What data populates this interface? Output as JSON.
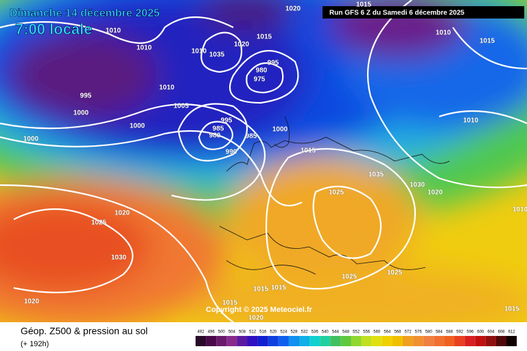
{
  "header": {
    "title": "Dimanche 14 décembre 2025",
    "time": "7:00 locale",
    "run": "Run GFS 6 Z du Samedi 6 décembre 2025"
  },
  "copyright": "Copyright © 2025 Meteociel.fr",
  "isobar_labels": [
    1020,
    1010,
    1010,
    1015,
    1020,
    1010,
    1035,
    995,
    980,
    975,
    1010,
    995,
    1000,
    1005,
    995,
    985,
    980,
    1000,
    1000,
    985,
    1000,
    990,
    1015,
    1035,
    1025,
    1030,
    1020,
    1010,
    1015,
    1010,
    1015,
    1020,
    1025,
    1030,
    1025,
    1025,
    1015,
    1015,
    1015,
    1020,
    1020,
    1015,
    1010
  ],
  "legend": {
    "title": "Géop. Z500 & pression au sol",
    "subtitle": "(+ 192h)",
    "levels": [
      492,
      496,
      500,
      504,
      508,
      512,
      516,
      520,
      524,
      528,
      532,
      536,
      540,
      544,
      548,
      552,
      556,
      560,
      564,
      568,
      572,
      576,
      580,
      584,
      588,
      592,
      596,
      600,
      604,
      608,
      612
    ],
    "colors": [
      "#2a0a2a",
      "#4a0a4a",
      "#6a1a6a",
      "#8a2a8a",
      "#5a1aa0",
      "#3010c0",
      "#1020d0",
      "#1040e0",
      "#1060f0",
      "#1090f0",
      "#10b0e8",
      "#10d0d0",
      "#20d0a0",
      "#40c060",
      "#60c840",
      "#90d830",
      "#c0e020",
      "#e0e010",
      "#f0d000",
      "#f0c000",
      "#f0a020",
      "#f09030",
      "#f08040",
      "#f07030",
      "#f06020",
      "#e84020",
      "#d82020",
      "#c01010",
      "#901010",
      "#500808",
      "#100000"
    ]
  }
}
